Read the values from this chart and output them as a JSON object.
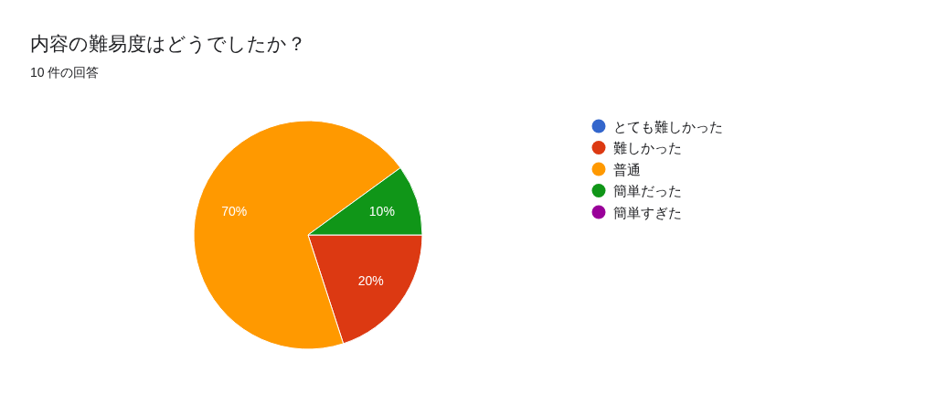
{
  "chart_data": {
    "type": "pie",
    "title": "内容の難易度はどうでしたか？",
    "subtitle": "10 件の回答",
    "categories": [
      "とても難しかった",
      "難しかった",
      "普通",
      "簡単だった",
      "簡単すぎた"
    ],
    "values": [
      0,
      20,
      70,
      10,
      0
    ],
    "colors": [
      "#3366cc",
      "#dc3912",
      "#ff9900",
      "#109618",
      "#990099"
    ],
    "value_labels": [
      null,
      "20%",
      "70%",
      "10%",
      null
    ],
    "legend": "right"
  }
}
